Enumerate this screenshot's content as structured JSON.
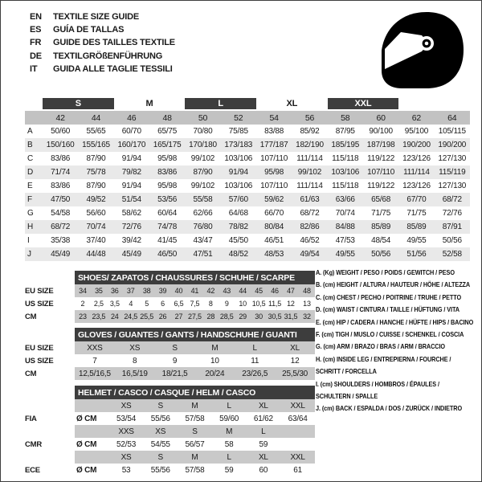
{
  "header": {
    "languages": [
      {
        "code": "EN",
        "text": "TEXTILE SIZE GUIDE"
      },
      {
        "code": "ES",
        "text": "GUÍA DE TALLAS"
      },
      {
        "code": "FR",
        "text": "GUIDE DES TAILLES TEXTILE"
      },
      {
        "code": "DE",
        "text": "TEXTILGRÖßENFÜHRUNG"
      },
      {
        "code": "IT",
        "text": "GUIDA ALLE TAGLIE TESSILI"
      }
    ],
    "logo": "full-face-helmet-icon"
  },
  "textile_table": {
    "size_groups": [
      {
        "label": "S",
        "dark": true
      },
      {
        "label": "M",
        "dark": false
      },
      {
        "label": "L",
        "dark": true
      },
      {
        "label": "XL",
        "dark": false
      },
      {
        "label": "XXL",
        "dark": true
      }
    ],
    "sizes": [
      "42",
      "44",
      "46",
      "48",
      "50",
      "52",
      "54",
      "56",
      "58",
      "60",
      "62",
      "64"
    ],
    "rows": [
      {
        "key": "A",
        "values": [
          "50/60",
          "55/65",
          "60/70",
          "65/75",
          "70/80",
          "75/85",
          "83/88",
          "85/92",
          "87/95",
          "90/100",
          "95/100",
          "105/115"
        ]
      },
      {
        "key": "B",
        "values": [
          "150/160",
          "155/165",
          "160/170",
          "165/175",
          "170/180",
          "173/183",
          "177/187",
          "182/190",
          "185/195",
          "187/198",
          "190/200",
          "190/200"
        ]
      },
      {
        "key": "C",
        "values": [
          "83/86",
          "87/90",
          "91/94",
          "95/98",
          "99/102",
          "103/106",
          "107/110",
          "111/114",
          "115/118",
          "119/122",
          "123/126",
          "127/130"
        ]
      },
      {
        "key": "D",
        "values": [
          "71/74",
          "75/78",
          "79/82",
          "83/86",
          "87/90",
          "91/94",
          "95/98",
          "99/102",
          "103/106",
          "107/110",
          "111/114",
          "115/119"
        ]
      },
      {
        "key": "E",
        "values": [
          "83/86",
          "87/90",
          "91/94",
          "95/98",
          "99/102",
          "103/106",
          "107/110",
          "111/114",
          "115/118",
          "119/122",
          "123/126",
          "127/130"
        ]
      },
      {
        "key": "F",
        "values": [
          "47/50",
          "49/52",
          "51/54",
          "53/56",
          "55/58",
          "57/60",
          "59/62",
          "61/63",
          "63/66",
          "65/68",
          "67/70",
          "68/72"
        ]
      },
      {
        "key": "G",
        "values": [
          "54/58",
          "56/60",
          "58/62",
          "60/64",
          "62/66",
          "64/68",
          "66/70",
          "68/72",
          "70/74",
          "71/75",
          "71/75",
          "72/76"
        ]
      },
      {
        "key": "H",
        "values": [
          "68/72",
          "70/74",
          "72/76",
          "74/78",
          "76/80",
          "78/82",
          "80/84",
          "82/86",
          "84/88",
          "85/89",
          "85/89",
          "87/91"
        ]
      },
      {
        "key": "I",
        "values": [
          "35/38",
          "37/40",
          "39/42",
          "41/45",
          "43/47",
          "45/50",
          "46/51",
          "46/52",
          "47/53",
          "48/54",
          "49/55",
          "50/56"
        ]
      },
      {
        "key": "J",
        "values": [
          "45/49",
          "44/48",
          "45/49",
          "46/50",
          "47/51",
          "48/52",
          "48/53",
          "49/54",
          "49/55",
          "50/56",
          "51/56",
          "52/58"
        ]
      }
    ]
  },
  "shoes_table": {
    "title": "SHOES/ ZAPATOS / CHAUSSURES / SCHUHE / SCARPE",
    "rows": [
      {
        "label": "EU SIZE",
        "shaded": true,
        "values": [
          "34",
          "35",
          "36",
          "37",
          "38",
          "39",
          "40",
          "41",
          "42",
          "43",
          "44",
          "45",
          "46",
          "47",
          "48"
        ]
      },
      {
        "label": "US SIZE",
        "shaded": false,
        "values": [
          "2",
          "2,5",
          "3,5",
          "4",
          "5",
          "6",
          "6,5",
          "7,5",
          "8",
          "9",
          "10",
          "10,5",
          "11,5",
          "12",
          "13"
        ]
      },
      {
        "label": "CM",
        "shaded": true,
        "values": [
          "23",
          "23,5",
          "24",
          "24,5",
          "25,5",
          "26",
          "27",
          "27,5",
          "28",
          "28,5",
          "29",
          "30",
          "30,5",
          "31,5",
          "32"
        ]
      }
    ]
  },
  "gloves_table": {
    "title": "GLOVES / GUANTES / GANTS / HANDSCHUHE / GUANTI",
    "rows": [
      {
        "label": "EU SIZE",
        "shaded": true,
        "values": [
          "XXS",
          "XS",
          "S",
          "M",
          "L",
          "XL"
        ]
      },
      {
        "label": "US SIZE",
        "shaded": false,
        "values": [
          "7",
          "8",
          "9",
          "10",
          "11",
          "12"
        ]
      },
      {
        "label": "CM",
        "shaded": true,
        "values": [
          "12,5/16,5",
          "16,5/19",
          "18/21,5",
          "20/24",
          "23/26,5",
          "25,5/30"
        ]
      }
    ]
  },
  "helmet_table": {
    "title": "HELMET / CASCO / CASQUE / HELM / CASCO",
    "sections": [
      {
        "label": "FIA",
        "unit": "Ø CM",
        "sizes": [
          "XS",
          "S",
          "M",
          "L",
          "XL",
          "XXL"
        ],
        "values": [
          "53/54",
          "55/56",
          "57/58",
          "59/60",
          "61/62",
          "63/64"
        ]
      },
      {
        "label": "CMR",
        "unit": "Ø CM",
        "sizes": [
          "XXS",
          "XS",
          "S",
          "M",
          "L",
          ""
        ],
        "values": [
          "52/53",
          "54/55",
          "56/57",
          "58",
          "59",
          ""
        ]
      },
      {
        "label": "ECE",
        "unit": "Ø CM",
        "sizes": [
          "XS",
          "S",
          "M",
          "L",
          "XL",
          "XXL"
        ],
        "values": [
          "53",
          "55/56",
          "57/58",
          "59",
          "60",
          "61"
        ]
      }
    ]
  },
  "legend": {
    "items": [
      "A. (Kg) WEIGHT / PESO / POIDS / GEWITCH / PESO",
      "B. (cm) HEIGHT / ALTURA / HAUTEUR / HÖHE / ALTEZZA",
      "C. (cm) CHEST / PECHO / POITRINE / TRUHE / PETTO",
      "D. (cm) WAIST / CINTURA / TAILLE / HÜFTUNG / VITA",
      "E. (cm) HIP / CADERA / HANCHE / HÜFTE / HIPS /  BACINO",
      "F. (cm) TIGH / MUSLO / CUISSE / SCHENKEL / COSCIA",
      "G. (cm) ARM  / BRAZO / BRAS / ARM / BRACCIO",
      "H. (cm) INSIDE LEG / ENTREPIERNA / FOURCHE /\nSCHRITT / FORCELLA",
      "I.  (cm) SHOULDERS / HOMBROS / ÉPAULES /\nSCHULTERN / SPALLE",
      "J. (cm) BACK / ESPALDA / DOS / ZURÜCK / INDIETRO"
    ]
  },
  "colors": {
    "dark_bar": "#3d3d3d",
    "numrow_shade": "#c2c2c2",
    "row_shade": "#c9c9c9",
    "stripe": "#e9e9e9"
  }
}
